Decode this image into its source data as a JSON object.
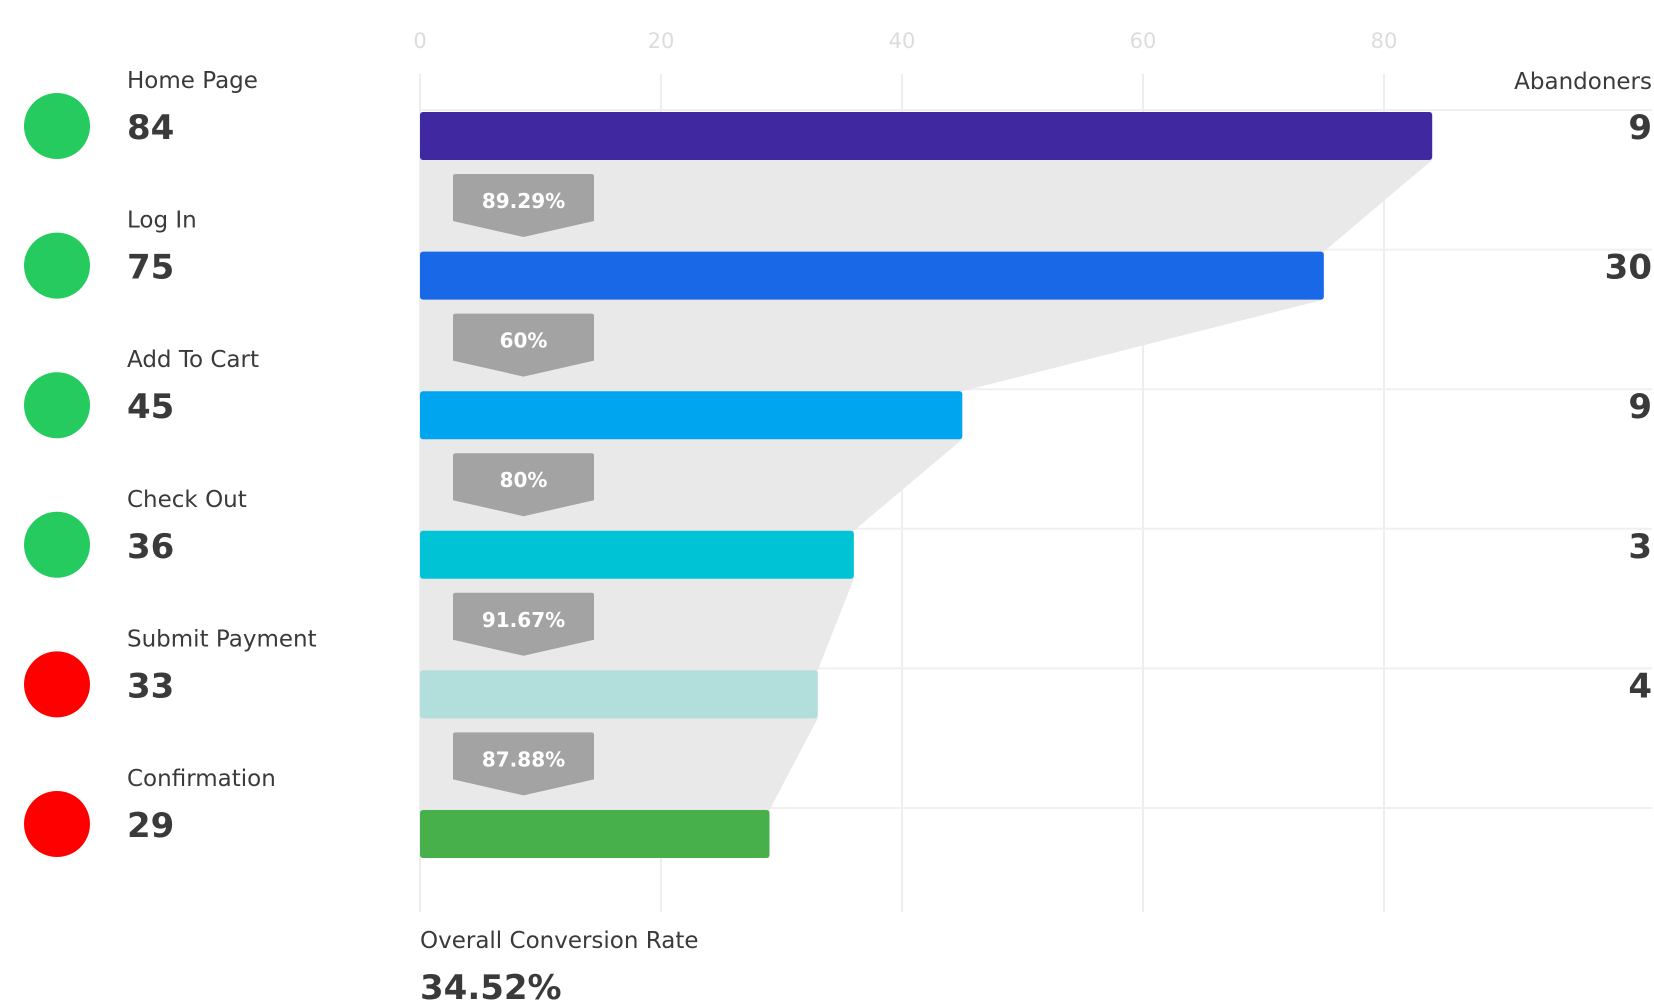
{
  "chart_data": {
    "type": "bar",
    "orientation": "horizontal",
    "xlim": [
      0,
      100
    ],
    "x_ticks": [
      "0",
      "20",
      "40",
      "60",
      "80"
    ],
    "grid": true,
    "categories": [
      "Home Page",
      "Log In",
      "Add To Cart",
      "Check Out",
      "Submit Payment",
      "Confirmation"
    ],
    "values": [
      84,
      75,
      45,
      36,
      33,
      29
    ],
    "value_labels": [
      "84",
      "75",
      "45",
      "36",
      "33",
      "29"
    ],
    "bar_colors": [
      "#3f28a0",
      "#1868e8",
      "#00a5ef",
      "#00c3d5",
      "#b2dfdb",
      "#47b04b"
    ],
    "status": [
      "good",
      "good",
      "good",
      "good",
      "bad",
      "bad"
    ],
    "status_colors": {
      "good": "#25cb5e",
      "bad": "#ff0000"
    },
    "abandoners_header": "Abandoners",
    "abandoners": [
      "9",
      "30",
      "9",
      "3",
      "4",
      ""
    ],
    "step_conversion": [
      "89.29%",
      "60%",
      "80%",
      "91.67%",
      "87.88%"
    ],
    "overall_conversion_label": "Overall Conversion Rate",
    "overall_conversion_value": "34.52%"
  }
}
